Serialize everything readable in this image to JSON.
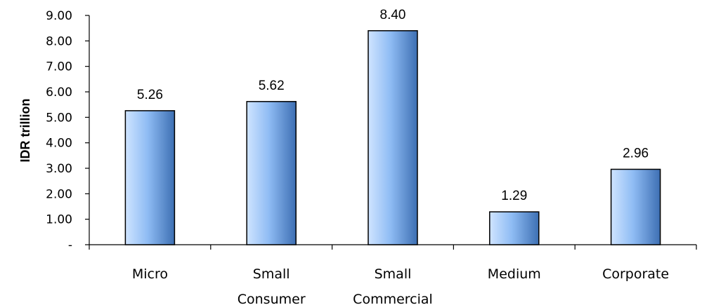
{
  "chart_data": {
    "type": "bar",
    "categories": [
      [
        "Micro"
      ],
      [
        "Small",
        "Consumer"
      ],
      [
        "Small",
        "Commercial"
      ],
      [
        "Medium"
      ],
      [
        "Corporate"
      ]
    ],
    "values": [
      5.26,
      5.62,
      8.4,
      1.29,
      2.96
    ],
    "data_labels": [
      "5.26",
      "5.62",
      "8.40",
      "1.29",
      "2.96"
    ],
    "title": "",
    "xlabel": "",
    "ylabel": "IDR trillion",
    "ylim": [
      0,
      9
    ],
    "yticks": [
      0,
      1,
      2,
      3,
      4,
      5,
      6,
      7,
      8,
      9
    ],
    "ytick_labels": [
      "-",
      "1.00",
      "2.00",
      "3.00",
      "4.00",
      "5.00",
      "6.00",
      "7.00",
      "8.00",
      "9.00"
    ],
    "grid": false,
    "legend": "none",
    "colors": {
      "bar_light": "#cfe4ff",
      "bar_mid": "#8fbcf4",
      "bar_dark": "#3d6fb3",
      "bar_stroke": "#000000",
      "axis": "#000000"
    }
  }
}
